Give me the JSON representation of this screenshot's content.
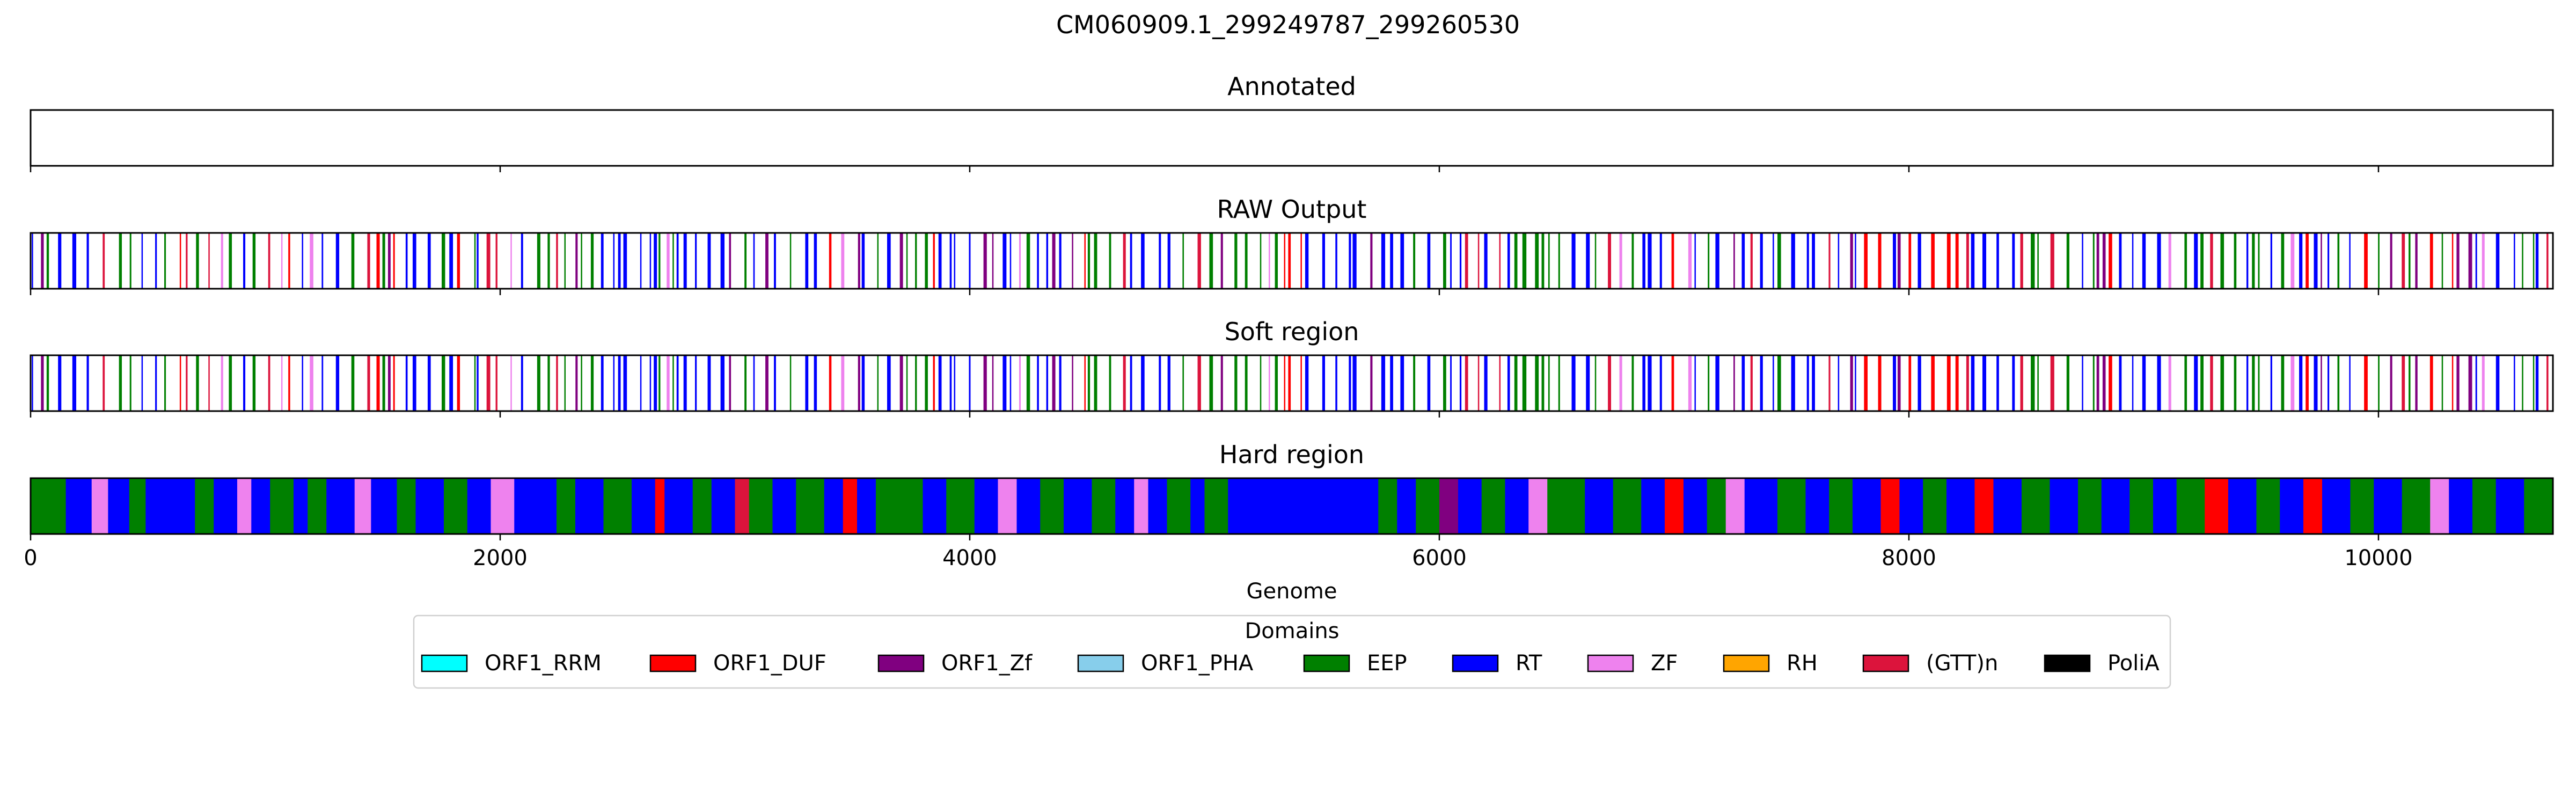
{
  "chart_data": {
    "type": "genome-track",
    "title": "CM060909.1_299249787_299260530",
    "xlabel": "Genome",
    "xlim": [
      0,
      10743
    ],
    "xticks": [
      0,
      2000,
      4000,
      6000,
      8000,
      10000
    ],
    "tracks": [
      {
        "title": "Annotated",
        "kind": "empty"
      },
      {
        "title": "RAW Output",
        "kind": "sparse"
      },
      {
        "title": "Soft region",
        "kind": "sparse"
      },
      {
        "title": "Hard region",
        "kind": "dense"
      }
    ],
    "hard_region_segments": [
      [
        0,
        150,
        "EEP"
      ],
      [
        150,
        260,
        "RT"
      ],
      [
        260,
        330,
        "ZF"
      ],
      [
        330,
        420,
        "RT"
      ],
      [
        420,
        490,
        "EEP"
      ],
      [
        490,
        560,
        "RT"
      ],
      [
        560,
        700,
        "RT"
      ],
      [
        700,
        780,
        "EEP"
      ],
      [
        780,
        880,
        "RT"
      ],
      [
        880,
        940,
        "ZF"
      ],
      [
        940,
        1020,
        "RT"
      ],
      [
        1020,
        1120,
        "EEP"
      ],
      [
        1120,
        1180,
        "RT"
      ],
      [
        1180,
        1260,
        "EEP"
      ],
      [
        1260,
        1380,
        "RT"
      ],
      [
        1380,
        1450,
        "ZF"
      ],
      [
        1450,
        1560,
        "RT"
      ],
      [
        1560,
        1640,
        "EEP"
      ],
      [
        1640,
        1760,
        "RT"
      ],
      [
        1760,
        1860,
        "EEP"
      ],
      [
        1860,
        1960,
        "RT"
      ],
      [
        1960,
        2060,
        "ZF"
      ],
      [
        2060,
        2240,
        "RT"
      ],
      [
        2240,
        2320,
        "EEP"
      ],
      [
        2320,
        2440,
        "RT"
      ],
      [
        2440,
        2560,
        "EEP"
      ],
      [
        2560,
        2660,
        "RT"
      ],
      [
        2660,
        2700,
        "ORF1_DUF"
      ],
      [
        2700,
        2820,
        "RT"
      ],
      [
        2820,
        2900,
        "EEP"
      ],
      [
        2900,
        3000,
        "RT"
      ],
      [
        3000,
        3060,
        "(GTT)n"
      ],
      [
        3060,
        3160,
        "EEP"
      ],
      [
        3160,
        3260,
        "RT"
      ],
      [
        3260,
        3380,
        "EEP"
      ],
      [
        3380,
        3460,
        "RT"
      ],
      [
        3460,
        3520,
        "ORF1_DUF"
      ],
      [
        3520,
        3600,
        "RT"
      ],
      [
        3600,
        3800,
        "EEP"
      ],
      [
        3800,
        3900,
        "RT"
      ],
      [
        3900,
        4020,
        "EEP"
      ],
      [
        4020,
        4120,
        "RT"
      ],
      [
        4120,
        4200,
        "ZF"
      ],
      [
        4200,
        4300,
        "RT"
      ],
      [
        4300,
        4400,
        "EEP"
      ],
      [
        4400,
        4520,
        "RT"
      ],
      [
        4520,
        4620,
        "EEP"
      ],
      [
        4620,
        4700,
        "RT"
      ],
      [
        4700,
        4760,
        "ZF"
      ],
      [
        4760,
        4840,
        "RT"
      ],
      [
        4840,
        4940,
        "EEP"
      ],
      [
        4940,
        5000,
        "RT"
      ],
      [
        5000,
        5100,
        "EEP"
      ],
      [
        5100,
        5200,
        "RT"
      ],
      [
        5200,
        5740,
        "RT"
      ],
      [
        5740,
        5820,
        "EEP"
      ],
      [
        5820,
        5900,
        "RT"
      ],
      [
        5900,
        6000,
        "EEP"
      ],
      [
        6000,
        6080,
        "ORF1_Zf"
      ],
      [
        6080,
        6180,
        "RT"
      ],
      [
        6180,
        6280,
        "EEP"
      ],
      [
        6280,
        6380,
        "RT"
      ],
      [
        6380,
        6460,
        "ZF"
      ],
      [
        6460,
        6620,
        "EEP"
      ],
      [
        6620,
        6740,
        "RT"
      ],
      [
        6740,
        6860,
        "EEP"
      ],
      [
        6860,
        6960,
        "RT"
      ],
      [
        6960,
        7040,
        "ORF1_DUF"
      ],
      [
        7040,
        7140,
        "RT"
      ],
      [
        7140,
        7220,
        "EEP"
      ],
      [
        7220,
        7300,
        "ZF"
      ],
      [
        7300,
        7440,
        "RT"
      ],
      [
        7440,
        7560,
        "EEP"
      ],
      [
        7560,
        7660,
        "RT"
      ],
      [
        7660,
        7760,
        "EEP"
      ],
      [
        7760,
        7880,
        "RT"
      ],
      [
        7880,
        7960,
        "ORF1_DUF"
      ],
      [
        7960,
        8060,
        "RT"
      ],
      [
        8060,
        8160,
        "EEP"
      ],
      [
        8160,
        8280,
        "RT"
      ],
      [
        8280,
        8360,
        "ORF1_DUF"
      ],
      [
        8360,
        8480,
        "RT"
      ],
      [
        8480,
        8600,
        "EEP"
      ],
      [
        8600,
        8720,
        "RT"
      ],
      [
        8720,
        8820,
        "EEP"
      ],
      [
        8820,
        8940,
        "RT"
      ],
      [
        8940,
        9040,
        "EEP"
      ],
      [
        9040,
        9140,
        "RT"
      ],
      [
        9140,
        9260,
        "EEP"
      ],
      [
        9260,
        9360,
        "ORF1_DUF"
      ],
      [
        9360,
        9480,
        "RT"
      ],
      [
        9480,
        9580,
        "EEP"
      ],
      [
        9580,
        9680,
        "RT"
      ],
      [
        9680,
        9760,
        "ORF1_DUF"
      ],
      [
        9760,
        9880,
        "RT"
      ],
      [
        9880,
        9980,
        "EEP"
      ],
      [
        9980,
        10100,
        "RT"
      ],
      [
        10100,
        10220,
        "EEP"
      ],
      [
        10220,
        10300,
        "ZF"
      ],
      [
        10300,
        10400,
        "RT"
      ],
      [
        10400,
        10500,
        "EEP"
      ],
      [
        10500,
        10620,
        "RT"
      ],
      [
        10620,
        10743,
        "EEP"
      ]
    ],
    "legend": {
      "title": "Domains",
      "placement": "bottom-center",
      "items": [
        {
          "label": "ORF1_RRM",
          "color": "#00ffff"
        },
        {
          "label": "ORF1_DUF",
          "color": "#ff0000"
        },
        {
          "label": "ORF1_Zf",
          "color": "#800080"
        },
        {
          "label": "ORF1_PHA",
          "color": "#87ceeb"
        },
        {
          "label": "EEP",
          "color": "#008000"
        },
        {
          "label": "RT",
          "color": "#0000ff"
        },
        {
          "label": "ZF",
          "color": "#ee82ee"
        },
        {
          "label": "RH",
          "color": "#ffa500"
        },
        {
          "label": "(GTT)n",
          "color": "#dc143c"
        },
        {
          "label": "PoliA",
          "color": "#000000"
        }
      ]
    }
  }
}
